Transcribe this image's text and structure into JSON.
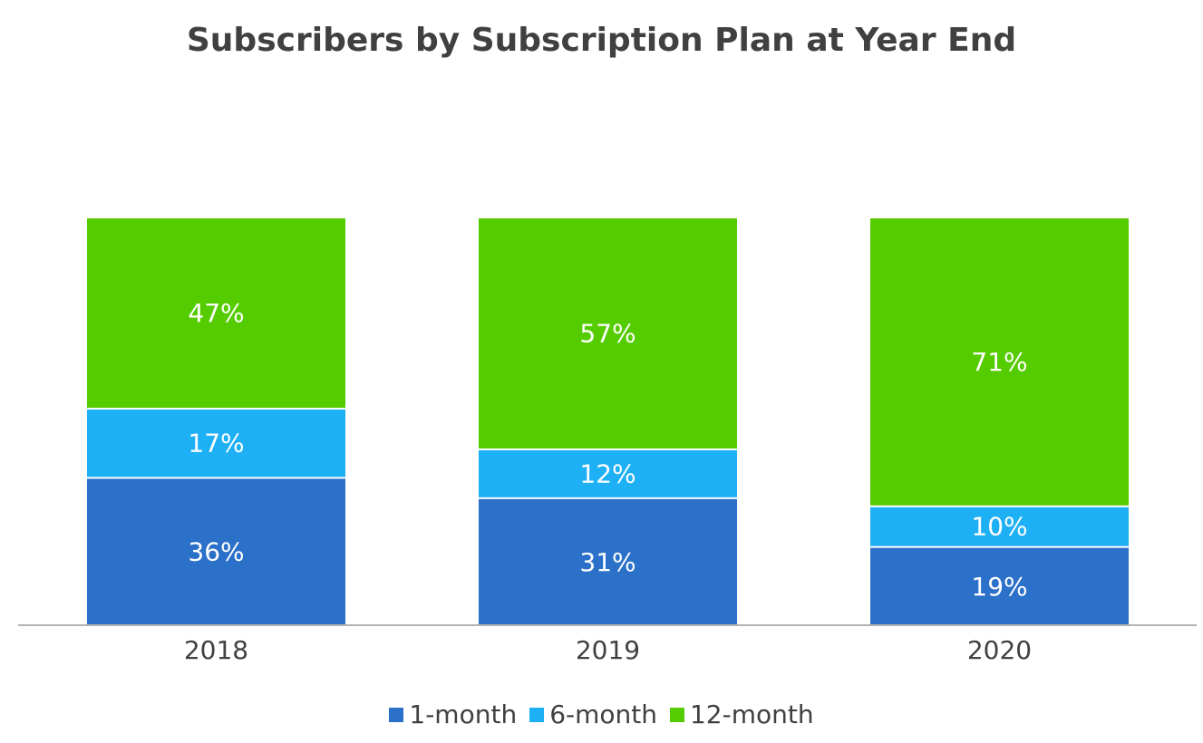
{
  "chart_data": {
    "type": "bar",
    "stacked": true,
    "title": "Subscribers by Subscription Plan at Year End",
    "xlabel": "",
    "ylabel": "",
    "categories": [
      "2018",
      "2019",
      "2020"
    ],
    "series": [
      {
        "name": "1-month",
        "color": "#2B70C9",
        "values": [
          36,
          31,
          19
        ],
        "labels": [
          "36%",
          "31%",
          "19%"
        ]
      },
      {
        "name": "6-month",
        "color": "#1EB0F5",
        "values": [
          17,
          12,
          10
        ],
        "labels": [
          "17%",
          "12%",
          "10%"
        ]
      },
      {
        "name": "12-month",
        "color": "#55CC00",
        "values": [
          47,
          57,
          71
        ],
        "labels": [
          "47%",
          "57%",
          "71%"
        ]
      }
    ],
    "ylim": [
      0,
      100
    ],
    "unit": "%",
    "grid": false,
    "legend_position": "bottom"
  }
}
